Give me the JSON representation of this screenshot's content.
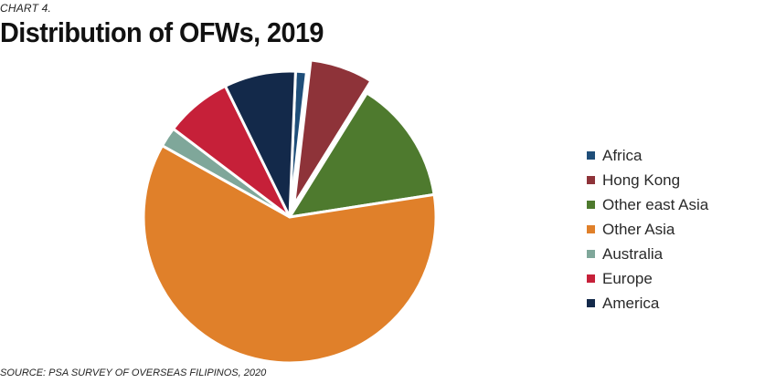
{
  "header": {
    "label": "CHART 4.",
    "title": "Distribution of OFWs, 2019"
  },
  "footer": {
    "source": "SOURCE: PSA SURVEY OF OVERSEAS FILIPINOS, 2020"
  },
  "chart_data": {
    "type": "pie",
    "title": "Distribution of OFWs, 2019",
    "legend_position": "right",
    "slices": [
      {
        "label": "Africa",
        "value": 1.2,
        "color": "#1f4e79",
        "exploded": false
      },
      {
        "label": "Hong Kong",
        "value": 7.0,
        "color": "#8e3339",
        "exploded": true
      },
      {
        "label": "Other east Asia",
        "value": 13.7,
        "color": "#4e7a2e",
        "exploded": false
      },
      {
        "label": "Other Asia",
        "value": 60.6,
        "color": "#e0802a",
        "exploded": false
      },
      {
        "label": "Australia",
        "value": 2.2,
        "color": "#7fa79a",
        "exploded": false
      },
      {
        "label": "Europe",
        "value": 7.4,
        "color": "#c62039",
        "exploded": false
      },
      {
        "label": "America",
        "value": 7.9,
        "color": "#13294a",
        "exploded": false
      }
    ]
  }
}
